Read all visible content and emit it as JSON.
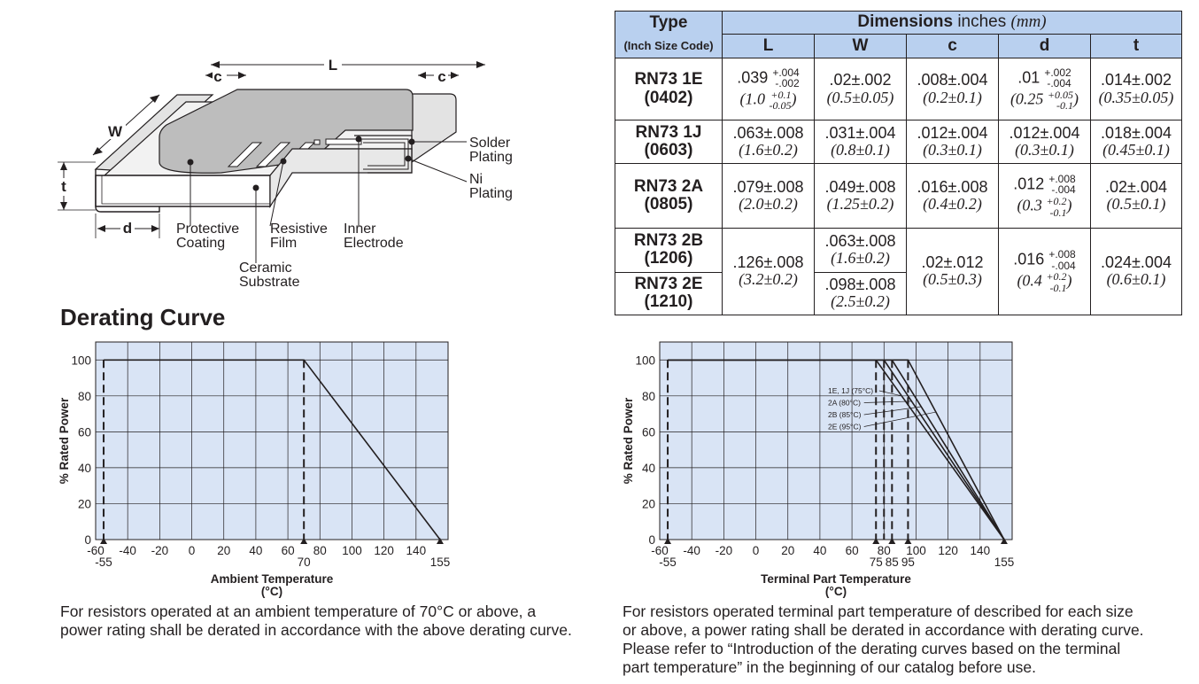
{
  "diagram": {
    "L": "L",
    "W": "W",
    "c_left": "c",
    "c_right": "c",
    "t": "t",
    "d": "d",
    "solder_plating": [
      "Solder",
      "Plating"
    ],
    "ni_plating": [
      "Ni",
      "Plating"
    ],
    "protective_coating": [
      "Protective",
      "Coating"
    ],
    "resistive_film": [
      "Resistive",
      "Film"
    ],
    "inner_electrode": [
      "Inner",
      "Electrode"
    ],
    "ceramic_substrate": [
      "Ceramic",
      "Substrate"
    ]
  },
  "table": {
    "type_header": "Type",
    "code_header": "(Inch Size Code)",
    "dim_header": "Dimensions",
    "dim_unit": "inches",
    "dim_unit_mm": "(mm)",
    "columns": [
      "L",
      "W",
      "c",
      "d",
      "t"
    ],
    "rows": [
      {
        "type": "RN73 1E",
        "code": "(0402)",
        "L": {
          "val": ".039",
          "tp": "+.004",
          "tm": "-.002",
          "mm_val": "(1.0",
          "mm_tp": "+0.1",
          "mm_tm": "-0.05",
          "mm_close": ")"
        },
        "W": {
          "inch": ".02±.002",
          "mm": "(0.5±0.05)"
        },
        "c": {
          "inch": ".008±.004",
          "mm": "(0.2±0.1)"
        },
        "d": {
          "val": ".01",
          "tp": "+.002",
          "tm": "-.004",
          "mm_val": "(0.25",
          "mm_tp": "+0.05",
          "mm_tm": "-0.1",
          "mm_close": ")"
        },
        "t": {
          "inch": ".014±.002",
          "mm": "(0.35±0.05)"
        }
      },
      {
        "type": "RN73 1J",
        "code": "(0603)",
        "L": {
          "inch": ".063±.008",
          "mm": "(1.6±0.2)"
        },
        "W": {
          "inch": ".031±.004",
          "mm": "(0.8±0.1)"
        },
        "c": {
          "inch": ".012±.004",
          "mm": "(0.3±0.1)"
        },
        "d": {
          "inch": ".012±.004",
          "mm": "(0.3±0.1)"
        },
        "t": {
          "inch": ".018±.004",
          "mm": "(0.45±0.1)"
        }
      },
      {
        "type": "RN73 2A",
        "code": "(0805)",
        "L": {
          "inch": ".079±.008",
          "mm": "(2.0±0.2)"
        },
        "W": {
          "inch": ".049±.008",
          "mm": "(1.25±0.2)"
        },
        "c": {
          "inch": ".016±.008",
          "mm": "(0.4±0.2)"
        },
        "d": {
          "val": ".012",
          "tp": "+.008",
          "tm": "-.004",
          "mm_val": "(0.3",
          "mm_tp": "+0.2",
          "mm_tm": "-0.1",
          "mm_close": ")"
        },
        "t": {
          "inch": ".02±.004",
          "mm": "(0.5±0.1)"
        }
      },
      {
        "type": "RN73 2B",
        "code": "(1206)",
        "L": {
          "inch": ".126±.008",
          "mm": "(3.2±0.2)"
        },
        "W": {
          "inch": ".063±.008",
          "mm": "(1.6±0.2)"
        },
        "c": {
          "inch": ".02±.012",
          "mm": "(0.5±0.3)"
        },
        "d": {
          "val": ".016",
          "tp": "+.008",
          "tm": "-.004",
          "mm_val": "(0.4",
          "mm_tp": "+0.2",
          "mm_tm": "-0.1",
          "mm_close": ")"
        },
        "t": {
          "inch": ".024±.004",
          "mm": "(0.6±0.1)"
        }
      },
      {
        "type": "RN73 2E",
        "code": "(1210)",
        "W": {
          "inch": ".098±.008",
          "mm": "(2.5±0.2)"
        }
      }
    ]
  },
  "derating_title": "Derating Curve",
  "chart_data": [
    {
      "type": "line",
      "title": "",
      "xlabel": "Ambient Temperature",
      "xlabel_unit": "(°C)",
      "ylabel": "% Rated Power",
      "xlim": [
        -60,
        160
      ],
      "ylim": [
        0,
        110
      ],
      "grid": true,
      "x_ticks": [
        "-60",
        "-40",
        "-20",
        "0",
        "20",
        "40",
        "60",
        "80",
        "100",
        "120",
        "140"
      ],
      "x_tick_values": [
        -60,
        -40,
        -20,
        0,
        20,
        40,
        60,
        80,
        100,
        120,
        140
      ],
      "y_ticks": [
        "0",
        "20",
        "40",
        "60",
        "80",
        "100"
      ],
      "y_tick_values": [
        0,
        20,
        40,
        60,
        80,
        100
      ],
      "markers": [
        {
          "x": -55,
          "label": "-55"
        },
        {
          "x": 70,
          "label": "70"
        },
        {
          "x": 155,
          "label": "155"
        }
      ],
      "series": [
        {
          "x": [
            -55,
            70,
            155
          ],
          "y": [
            100,
            100,
            0
          ]
        }
      ],
      "guides": [
        -55,
        70
      ]
    },
    {
      "type": "line",
      "title": "",
      "xlabel": "Terminal Part Temperature",
      "xlabel_unit": "(°C)",
      "ylabel": "% Rated Power",
      "xlim": [
        -60,
        160
      ],
      "ylim": [
        0,
        110
      ],
      "grid": true,
      "x_ticks": [
        "-60",
        "-40",
        "-20",
        "0",
        "20",
        "40",
        "60",
        "80",
        "100",
        "120",
        "140"
      ],
      "x_tick_values": [
        -60,
        -40,
        -20,
        0,
        20,
        40,
        60,
        80,
        100,
        120,
        140
      ],
      "y_ticks": [
        "0",
        "20",
        "40",
        "60",
        "80",
        "100"
      ],
      "y_tick_values": [
        0,
        20,
        40,
        60,
        80,
        100
      ],
      "markers": [
        {
          "x": -55,
          "label": "-55"
        },
        {
          "x": 75,
          "label": "75"
        },
        {
          "x": 85,
          "label": "85"
        },
        {
          "x": 95,
          "label": "95"
        },
        {
          "x": 155,
          "label": "155"
        }
      ],
      "series": [
        {
          "name": "1E, 1J (75°C)",
          "x": [
            -55,
            75,
            155
          ],
          "y": [
            100,
            100,
            0
          ]
        },
        {
          "name": "2A (80°C)",
          "x": [
            -55,
            80,
            155
          ],
          "y": [
            100,
            100,
            0
          ]
        },
        {
          "name": "2B (85°C)",
          "x": [
            -55,
            85,
            155
          ],
          "y": [
            100,
            100,
            0
          ]
        },
        {
          "name": "2E (95°C)",
          "x": [
            -55,
            95,
            155
          ],
          "y": [
            100,
            100,
            0
          ]
        }
      ],
      "guides": [
        -55,
        75,
        80,
        85,
        95
      ]
    }
  ],
  "captions": {
    "left": [
      "For resistors operated at an ambient temperature of 70°C or above, a",
      "power rating shall be derated in accordance with the above derating curve."
    ],
    "right": [
      "For resistors operated terminal part temperature of described for each size",
      "or above, a power rating shall be derated in accordance with derating curve.",
      "Please refer to “Introduction of the derating curves based on the terminal",
      "part temperature” in the beginning of our catalog before use."
    ]
  },
  "colors": {
    "plot_bg": "#d9e4f5",
    "header_bg": "#b9d0ef",
    "ink": "#231f20",
    "coating": "#bfbfbf",
    "body": "#e5e5e5"
  }
}
